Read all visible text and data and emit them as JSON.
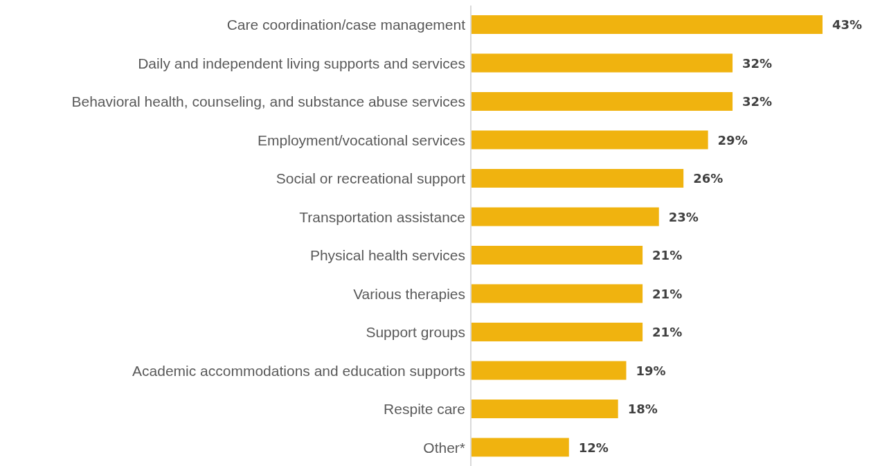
{
  "chart_data": {
    "type": "bar",
    "orientation": "horizontal",
    "categories": [
      "Care coordination/case management",
      "Daily and independent living supports and services",
      "Behavioral health, counseling, and substance abuse services",
      "Employment/vocational services",
      "Social or recreational support",
      "Transportation assistance",
      "Physical health services",
      "Various therapies",
      "Support groups",
      "Academic accommodations and education supports ",
      "Respite care",
      "Other*"
    ],
    "values": [
      43,
      32,
      32,
      29,
      26,
      23,
      21,
      21,
      21,
      19,
      18,
      12
    ],
    "value_labels": [
      "43%",
      "32%",
      "32%",
      "29%",
      "26%",
      "23%",
      "21%",
      "21%",
      "21%",
      "19%",
      "18%",
      "12%"
    ],
    "color": "#f0b30f",
    "tick_labels": "y"
  }
}
